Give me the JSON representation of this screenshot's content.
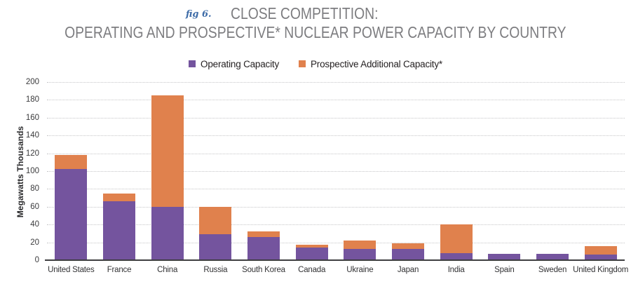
{
  "header": {
    "fig_label": "fig 6.",
    "title_line1": "CLOSE COMPETITION:",
    "title_line2": "OPERATING AND PROSPECTIVE* NUCLEAR POWER CAPACITY BY COUNTRY"
  },
  "legend": [
    {
      "label": "Operating Capacity",
      "color": "#74549e"
    },
    {
      "label": "Prospective Additional Capacity*",
      "color": "#e0814d"
    }
  ],
  "colors": {
    "operating": "#74549e",
    "prospective": "#e0814d",
    "title_gray": "#7d7d80",
    "fig_tag_blue": "#3e6ca8",
    "axis_line": "#3e3e40",
    "gridline": "#c6c6c8"
  },
  "chart_data": {
    "type": "bar",
    "stacked": true,
    "title": "CLOSE COMPETITION: OPERATING AND PROSPECTIVE* NUCLEAR POWER CAPACITY BY COUNTRY",
    "xlabel": "",
    "ylabel": "Megawatts Thousands",
    "ylim": [
      0,
      200
    ],
    "yticks": [
      0,
      20,
      40,
      60,
      80,
      100,
      120,
      140,
      160,
      180,
      200
    ],
    "grid": "horizontal-dotted",
    "legend_position": "top-center",
    "categories": [
      "United States",
      "France",
      "China",
      "Russia",
      "South Korea",
      "Canada",
      "Ukraine",
      "Japan",
      "India",
      "Spain",
      "Sweden",
      "United Kingdom"
    ],
    "series": [
      {
        "name": "Operating Capacity",
        "color": "#74549e",
        "values": [
          102,
          66,
          60,
          29,
          26,
          14,
          13,
          13,
          8,
          7,
          7,
          6
        ]
      },
      {
        "name": "Prospective Additional Capacity*",
        "color": "#e0814d",
        "values": [
          16,
          9,
          125,
          31,
          6,
          3,
          9,
          6,
          32,
          0,
          0,
          10
        ]
      }
    ],
    "stack_totals": [
      118,
      75,
      185,
      60,
      32,
      17,
      22,
      19,
      40,
      7,
      7,
      16
    ]
  }
}
